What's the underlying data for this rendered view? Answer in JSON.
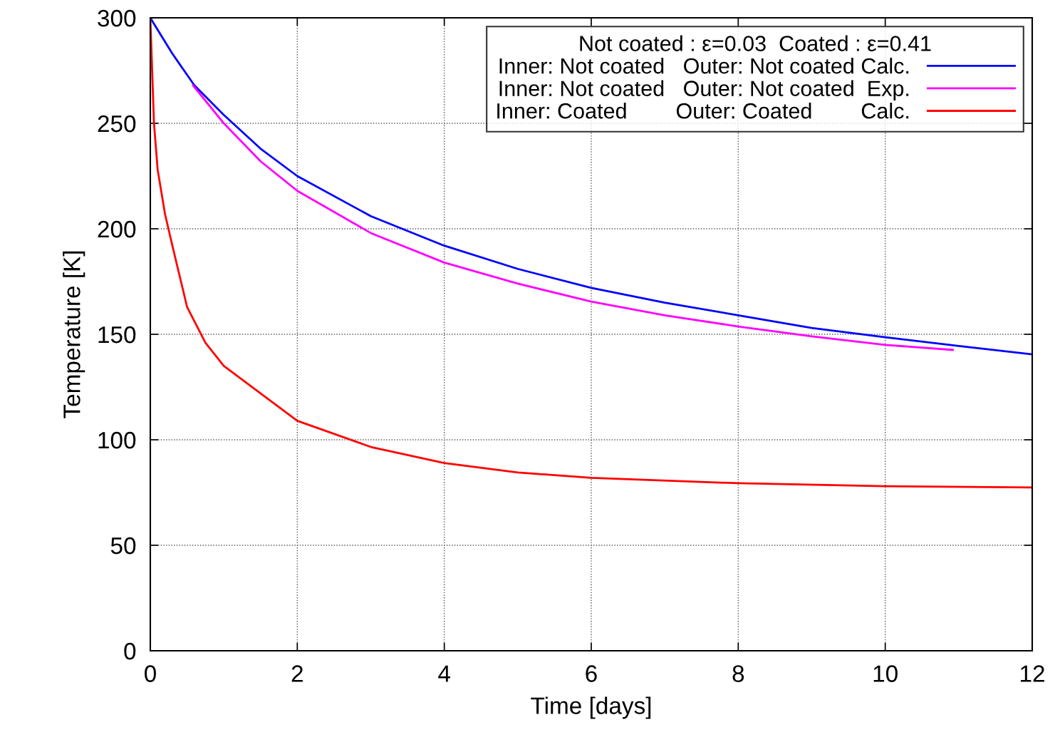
{
  "chart_data": {
    "type": "line",
    "xlabel": "Time [days]",
    "ylabel": "Temperature [K]",
    "legend_title": "Not coated : ε=0.03  Coated : ε=0.41",
    "xlim": [
      0,
      12
    ],
    "ylim": [
      0,
      300
    ],
    "xticks": [
      0,
      2,
      4,
      6,
      8,
      10,
      12
    ],
    "yticks": [
      0,
      50,
      100,
      150,
      200,
      250,
      300
    ],
    "grid": true,
    "legend": "top right",
    "line_style": "solid",
    "marker": "none",
    "series": [
      {
        "name": "Inner: Not coated   Outer: Not coated Calc.",
        "color": "#0000ff",
        "x": [
          0,
          0.3,
          0.6,
          1,
          1.5,
          2,
          3,
          4,
          5,
          6,
          7,
          8,
          9,
          10,
          11,
          12
        ],
        "values": [
          300,
          283,
          268,
          254,
          238,
          225,
          206,
          192,
          181,
          172,
          165,
          159,
          153,
          148.6,
          144.5,
          140.5
        ]
      },
      {
        "name": "Inner: Not coated   Outer: Not coated  Exp.",
        "color": "#ff00ff",
        "x": [
          0.58,
          1,
          1.5,
          2,
          3,
          4,
          5,
          6,
          7,
          8,
          9,
          10,
          10.92
        ],
        "values": [
          268,
          250,
          232,
          218,
          198,
          184,
          174,
          165.5,
          159,
          153.7,
          149,
          145,
          142.6
        ]
      },
      {
        "name": "Inner: Coated        Outer: Coated        Calc.",
        "color": "#ff0000",
        "x": [
          0,
          0.05,
          0.1,
          0.2,
          0.3,
          0.5,
          0.75,
          1,
          1.5,
          2,
          3,
          4,
          5,
          6,
          8,
          10,
          12
        ],
        "values": [
          300,
          250,
          228,
          207,
          192,
          163,
          146,
          135,
          122,
          109,
          96.6,
          89,
          84.5,
          82,
          79.4,
          78,
          77.4
        ]
      }
    ]
  }
}
